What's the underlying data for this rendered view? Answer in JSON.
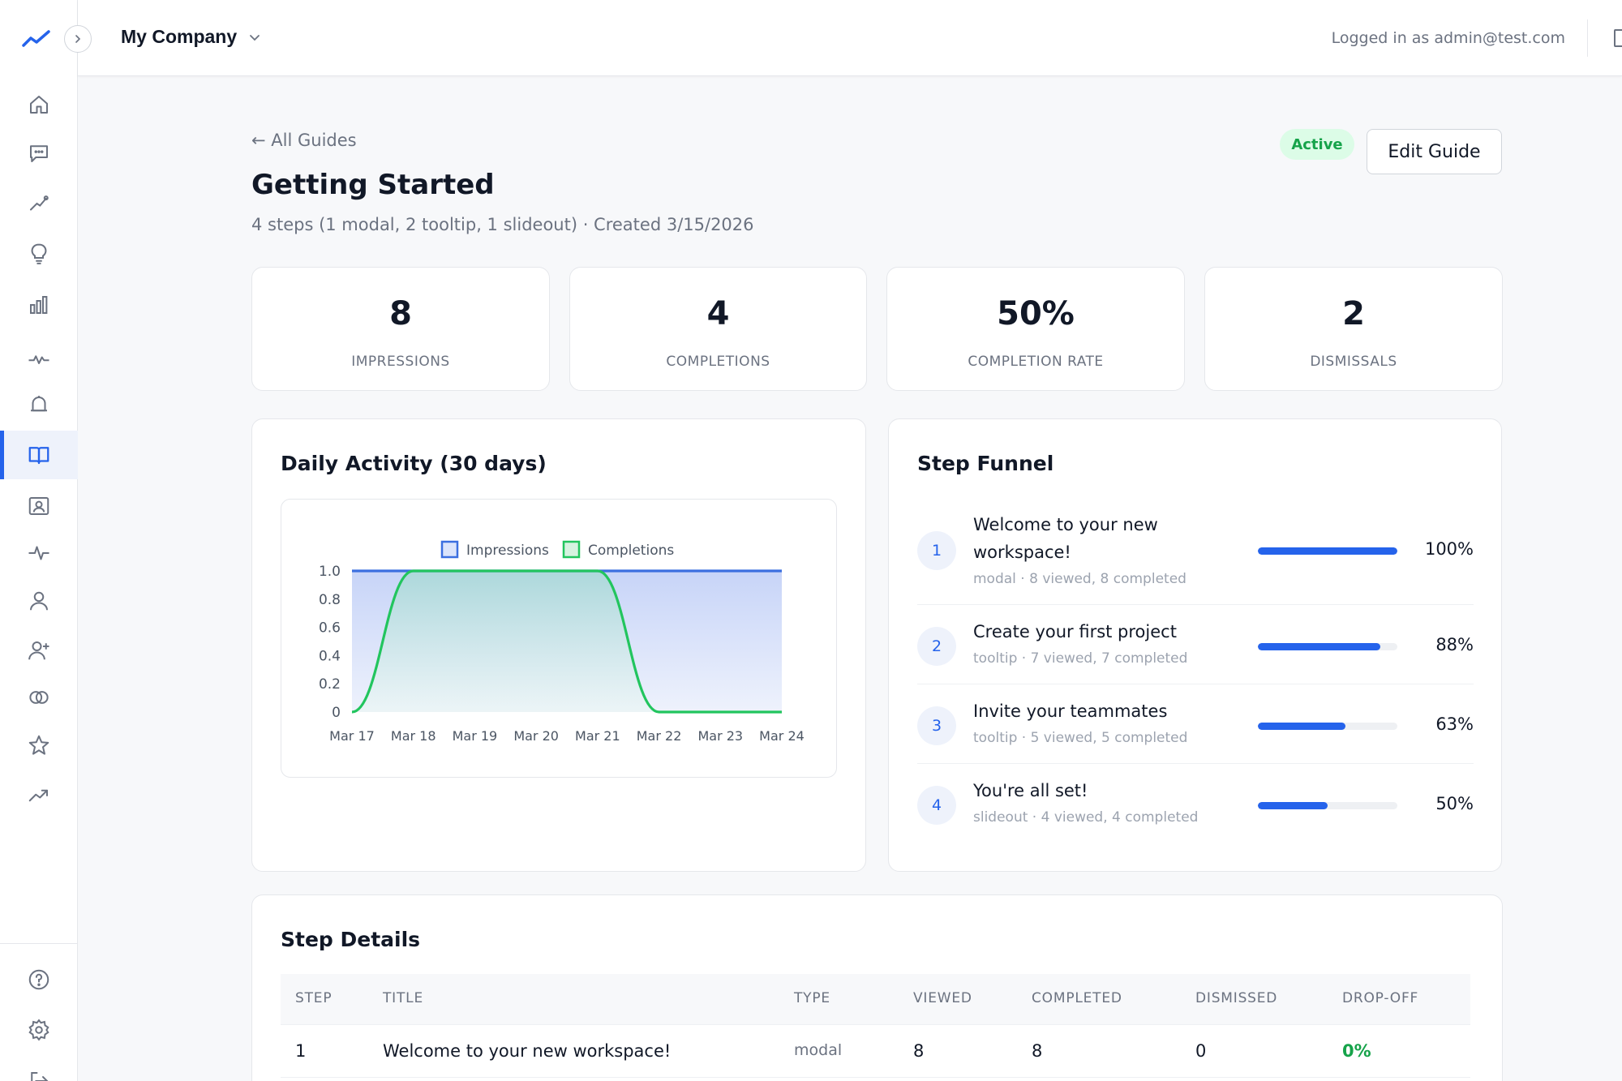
{
  "header": {
    "company_name": "My Company",
    "login_text": "Logged in as admin@test.com"
  },
  "sidebar": {
    "items": [
      {
        "icon": "home-icon"
      },
      {
        "icon": "chat-icon"
      },
      {
        "icon": "trend-icon"
      },
      {
        "icon": "lightbulb-icon"
      },
      {
        "icon": "bar-chart-icon"
      },
      {
        "icon": "pulse-icon"
      },
      {
        "icon": "bell-icon"
      },
      {
        "icon": "book-icon",
        "active": true
      },
      {
        "icon": "contact-card-icon"
      },
      {
        "icon": "activity-icon"
      },
      {
        "icon": "user-icon"
      },
      {
        "icon": "user-plus-icon"
      },
      {
        "icon": "segments-icon"
      },
      {
        "icon": "star-icon"
      },
      {
        "icon": "growth-icon"
      }
    ],
    "bottom": [
      {
        "icon": "help-icon"
      },
      {
        "icon": "settings-icon"
      },
      {
        "icon": "logout-icon"
      }
    ]
  },
  "page": {
    "back_label": "← All Guides",
    "title": "Getting Started",
    "subtitle": "4 steps (1 modal, 2 tooltip, 1 slideout) · Created 3/15/2026",
    "status": "Active",
    "edit_label": "Edit Guide"
  },
  "stats": [
    {
      "value": "8",
      "label": "IMPRESSIONS"
    },
    {
      "value": "4",
      "label": "COMPLETIONS"
    },
    {
      "value": "50%",
      "label": "COMPLETION RATE"
    },
    {
      "value": "2",
      "label": "DISMISSALS"
    }
  ],
  "activity": {
    "title": "Daily Activity (30 days)"
  },
  "chart_data": {
    "type": "line",
    "categories": [
      "Mar 17",
      "Mar 18",
      "Mar 19",
      "Mar 20",
      "Mar 21",
      "Mar 22",
      "Mar 23",
      "Mar 24"
    ],
    "series": [
      {
        "name": "Impressions",
        "values": [
          1,
          1,
          1,
          1,
          1,
          1,
          1,
          1
        ],
        "color": "#3b6fe0"
      },
      {
        "name": "Completions",
        "values": [
          0,
          1,
          1,
          1,
          1,
          0,
          0,
          0
        ],
        "color": "#22c55e"
      }
    ],
    "ylim": [
      0,
      1
    ],
    "yticks": [
      "1.0",
      "0.8",
      "0.6",
      "0.4",
      "0.2",
      "0"
    ],
    "legend": "top"
  },
  "funnel": {
    "title": "Step Funnel",
    "steps": [
      {
        "num": "1",
        "title": "Welcome to your new workspace!",
        "meta": "modal · 8 viewed, 8 completed",
        "pct": "100%",
        "fraction": 1.0
      },
      {
        "num": "2",
        "title": "Create your first project",
        "meta": "tooltip · 7 viewed, 7 completed",
        "pct": "88%",
        "fraction": 0.88
      },
      {
        "num": "3",
        "title": "Invite your teammates",
        "meta": "tooltip · 5 viewed, 5 completed",
        "pct": "63%",
        "fraction": 0.63
      },
      {
        "num": "4",
        "title": "You're all set!",
        "meta": "slideout · 4 viewed, 4 completed",
        "pct": "50%",
        "fraction": 0.5
      }
    ]
  },
  "details": {
    "title": "Step Details",
    "columns": [
      "STEP",
      "TITLE",
      "TYPE",
      "VIEWED",
      "COMPLETED",
      "DISMISSED",
      "DROP-OFF"
    ],
    "rows": [
      {
        "step": "1",
        "title": "Welcome to your new workspace!",
        "type": "modal",
        "viewed": "8",
        "completed": "8",
        "dismissed": "0",
        "dropoff": "0%"
      }
    ]
  },
  "colors": {
    "accent": "#2563eb",
    "success": "#16a34a",
    "impressions": "#3b6fe0",
    "completions": "#22c55e"
  }
}
